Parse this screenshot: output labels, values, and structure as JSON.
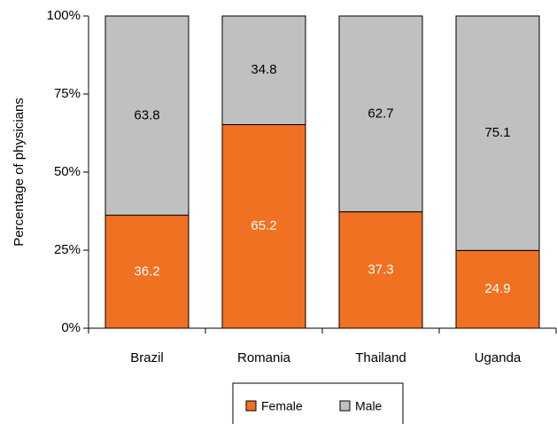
{
  "chart_data": {
    "type": "stacked_bar",
    "y_axis_label": "Percentage of physicians",
    "categories": [
      "Brazil",
      "Romania",
      "Thailand",
      "Uganda"
    ],
    "series": [
      {
        "name": "Female",
        "color": "#f07122",
        "values": [
          36.2,
          65.2,
          37.3,
          24.9
        ]
      },
      {
        "name": "Male",
        "color": "#c0c0c0",
        "values": [
          63.8,
          34.8,
          62.7,
          75.1
        ]
      }
    ],
    "ylim": [
      0,
      100
    ],
    "yticks": [
      {
        "value": 0,
        "label": "0%"
      },
      {
        "value": 25,
        "label": "25%"
      },
      {
        "value": 50,
        "label": "50%"
      },
      {
        "value": 75,
        "label": "75%"
      },
      {
        "value": 100,
        "label": "100%"
      }
    ],
    "legend": "bottom"
  }
}
